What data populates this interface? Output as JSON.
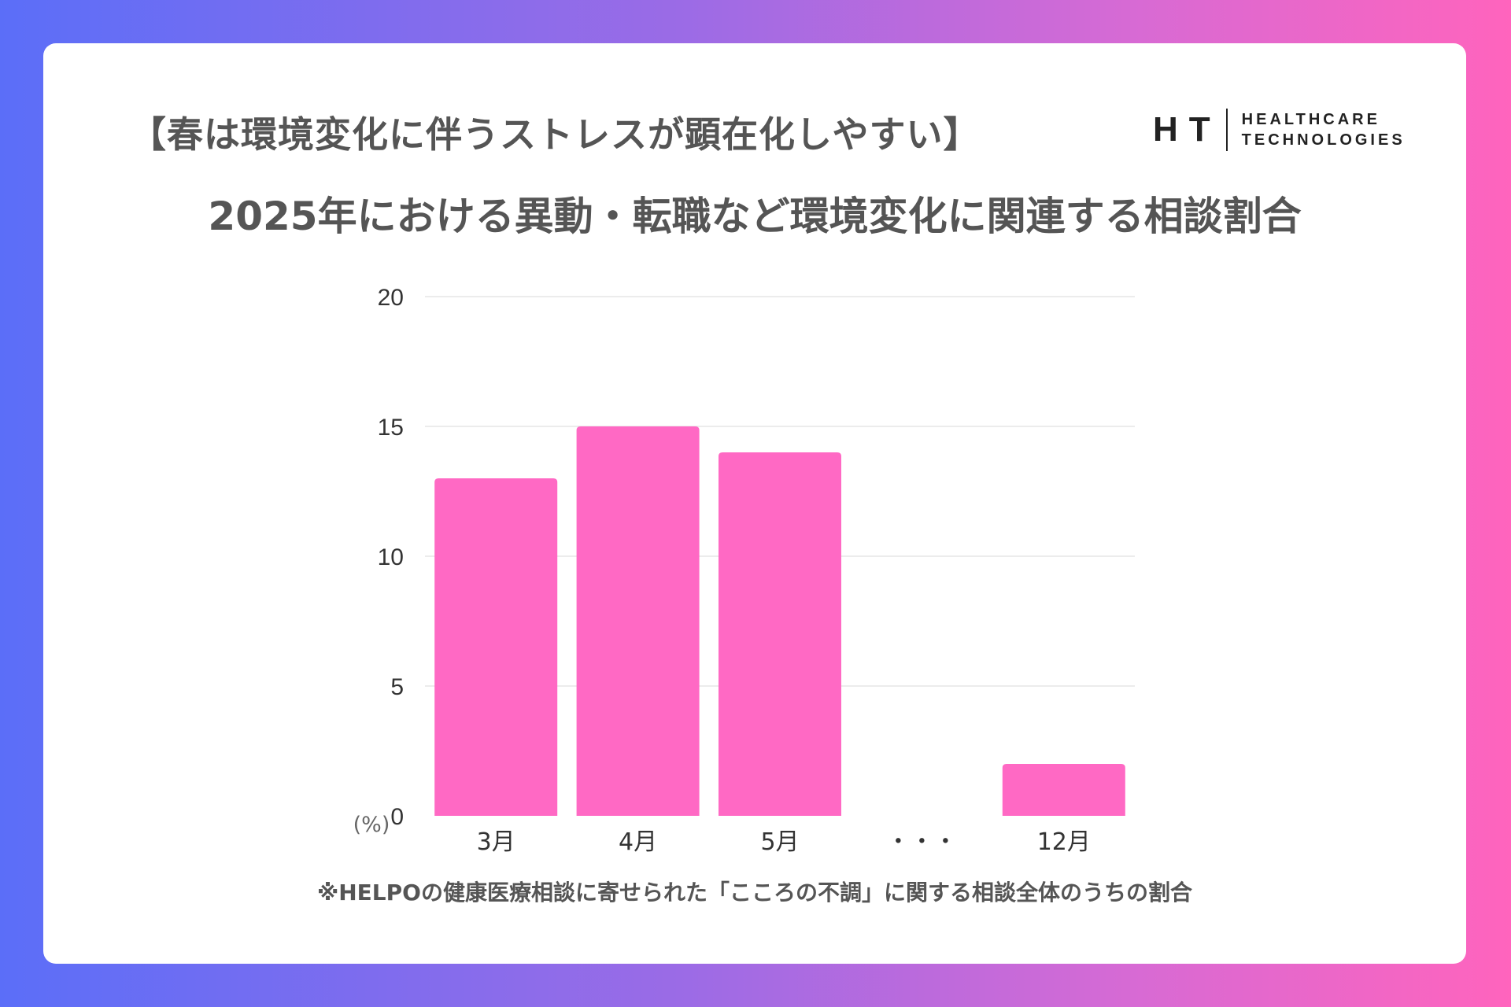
{
  "header": {
    "subtitle": "【春は環境変化に伴うストレスが顕在化しやすい】",
    "title": "2025年における異動・転職など環境変化に関連する相談割合"
  },
  "logo": {
    "mark": "HT",
    "line1": "HEALTHCARE",
    "line2": "TECHNOLOGIES"
  },
  "chart_data": {
    "type": "bar",
    "categories": [
      "3月",
      "4月",
      "5月",
      "・・・",
      "12月"
    ],
    "values": [
      13,
      15,
      14,
      null,
      2
    ],
    "y_ticks": [
      0,
      5,
      10,
      15,
      20
    ],
    "ylim": [
      0,
      20
    ],
    "unit_label": "(%)",
    "bar_color": "#ff69c4",
    "grid": true
  },
  "footnote": "※HELPOの健康医療相談に寄せられた「こころの不調」に関する相談全体のうちの割合",
  "colors": {
    "gradient_start": "#5b6ef8",
    "gradient_end": "#ff64bd",
    "text": "#555555"
  }
}
